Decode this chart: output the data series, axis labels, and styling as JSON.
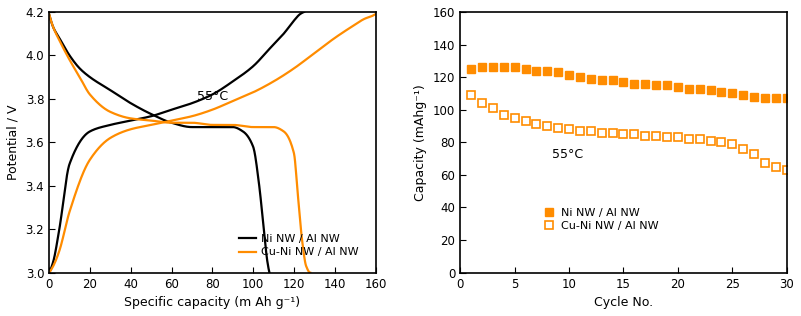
{
  "orange_color": "#FF8C00",
  "black_color": "#000000",
  "left_xlabel": "Specific capacity (m Ah g⁻¹)",
  "left_ylabel": "Potential / V",
  "left_xlim": [
    0,
    160
  ],
  "left_ylim": [
    3.0,
    4.2
  ],
  "left_yticks": [
    3.0,
    3.2,
    3.4,
    3.6,
    3.8,
    4.0,
    4.2
  ],
  "left_xticks": [
    0,
    20,
    40,
    60,
    80,
    100,
    120,
    140,
    160
  ],
  "left_annotation": "55°C",
  "left_legend": [
    "Ni NW / Al NW",
    "Cu-Ni NW / Al NW"
  ],
  "ni_discharge_x": [
    0,
    2,
    5,
    10,
    15,
    20,
    30,
    40,
    50,
    60,
    70,
    80,
    90,
    95,
    100,
    103,
    105,
    107,
    108
  ],
  "ni_discharge_y": [
    4.19,
    4.13,
    4.08,
    4.0,
    3.94,
    3.9,
    3.84,
    3.78,
    3.73,
    3.69,
    3.67,
    3.67,
    3.67,
    3.65,
    3.58,
    3.4,
    3.22,
    3.05,
    3.0
  ],
  "ni_charge_x": [
    0,
    2,
    5,
    10,
    20,
    30,
    40,
    50,
    60,
    70,
    80,
    90,
    100,
    108,
    115,
    120,
    123,
    125
  ],
  "ni_charge_y": [
    3.0,
    3.05,
    3.2,
    3.5,
    3.65,
    3.68,
    3.7,
    3.72,
    3.75,
    3.78,
    3.82,
    3.88,
    3.95,
    4.03,
    4.1,
    4.16,
    4.19,
    4.2
  ],
  "cu_discharge_x": [
    0,
    2,
    5,
    10,
    15,
    20,
    30,
    40,
    50,
    60,
    70,
    80,
    90,
    100,
    110,
    115,
    120,
    122,
    124,
    126,
    128
  ],
  "cu_discharge_y": [
    4.19,
    4.13,
    4.07,
    3.98,
    3.9,
    3.82,
    3.74,
    3.71,
    3.7,
    3.69,
    3.69,
    3.68,
    3.68,
    3.67,
    3.67,
    3.65,
    3.55,
    3.35,
    3.15,
    3.03,
    3.0
  ],
  "cu_charge_x": [
    0,
    2,
    5,
    10,
    20,
    30,
    40,
    50,
    60,
    70,
    80,
    90,
    100,
    110,
    120,
    130,
    140,
    148,
    155,
    158,
    160
  ],
  "cu_charge_y": [
    3.0,
    3.03,
    3.1,
    3.28,
    3.52,
    3.62,
    3.66,
    3.68,
    3.7,
    3.72,
    3.75,
    3.79,
    3.83,
    3.88,
    3.94,
    4.01,
    4.08,
    4.13,
    4.17,
    4.18,
    4.19
  ],
  "right_xlabel": "Cycle No.",
  "right_ylabel": "Capacity (mAhg⁻¹)",
  "right_xlim": [
    0,
    30
  ],
  "right_ylim": [
    0,
    160
  ],
  "right_yticks": [
    0,
    20,
    40,
    60,
    80,
    100,
    120,
    140,
    160
  ],
  "right_xticks": [
    0,
    5,
    10,
    15,
    20,
    25,
    30
  ],
  "right_annotation": "55°C",
  "right_legend": [
    "Ni NW / Al NW",
    "Cu-Ni NW / Al NW"
  ],
  "ni_cycle_x": [
    1,
    2,
    3,
    4,
    5,
    6,
    7,
    8,
    9,
    10,
    11,
    12,
    13,
    14,
    15,
    16,
    17,
    18,
    19,
    20,
    21,
    22,
    23,
    24,
    25,
    26,
    27,
    28,
    29,
    30
  ],
  "ni_cycle_y": [
    125,
    126,
    126,
    126,
    126,
    125,
    124,
    124,
    123,
    121,
    120,
    119,
    118,
    118,
    117,
    116,
    116,
    115,
    115,
    114,
    113,
    113,
    112,
    111,
    110,
    109,
    108,
    107,
    107,
    107
  ],
  "cu_cycle_x": [
    1,
    2,
    3,
    4,
    5,
    6,
    7,
    8,
    9,
    10,
    11,
    12,
    13,
    14,
    15,
    16,
    17,
    18,
    19,
    20,
    21,
    22,
    23,
    24,
    25,
    26,
    27,
    28,
    29,
    30
  ],
  "cu_cycle_y": [
    109,
    104,
    101,
    97,
    95,
    93,
    91,
    90,
    89,
    88,
    87,
    87,
    86,
    86,
    85,
    85,
    84,
    84,
    83,
    83,
    82,
    82,
    81,
    80,
    79,
    76,
    73,
    67,
    65,
    63
  ]
}
